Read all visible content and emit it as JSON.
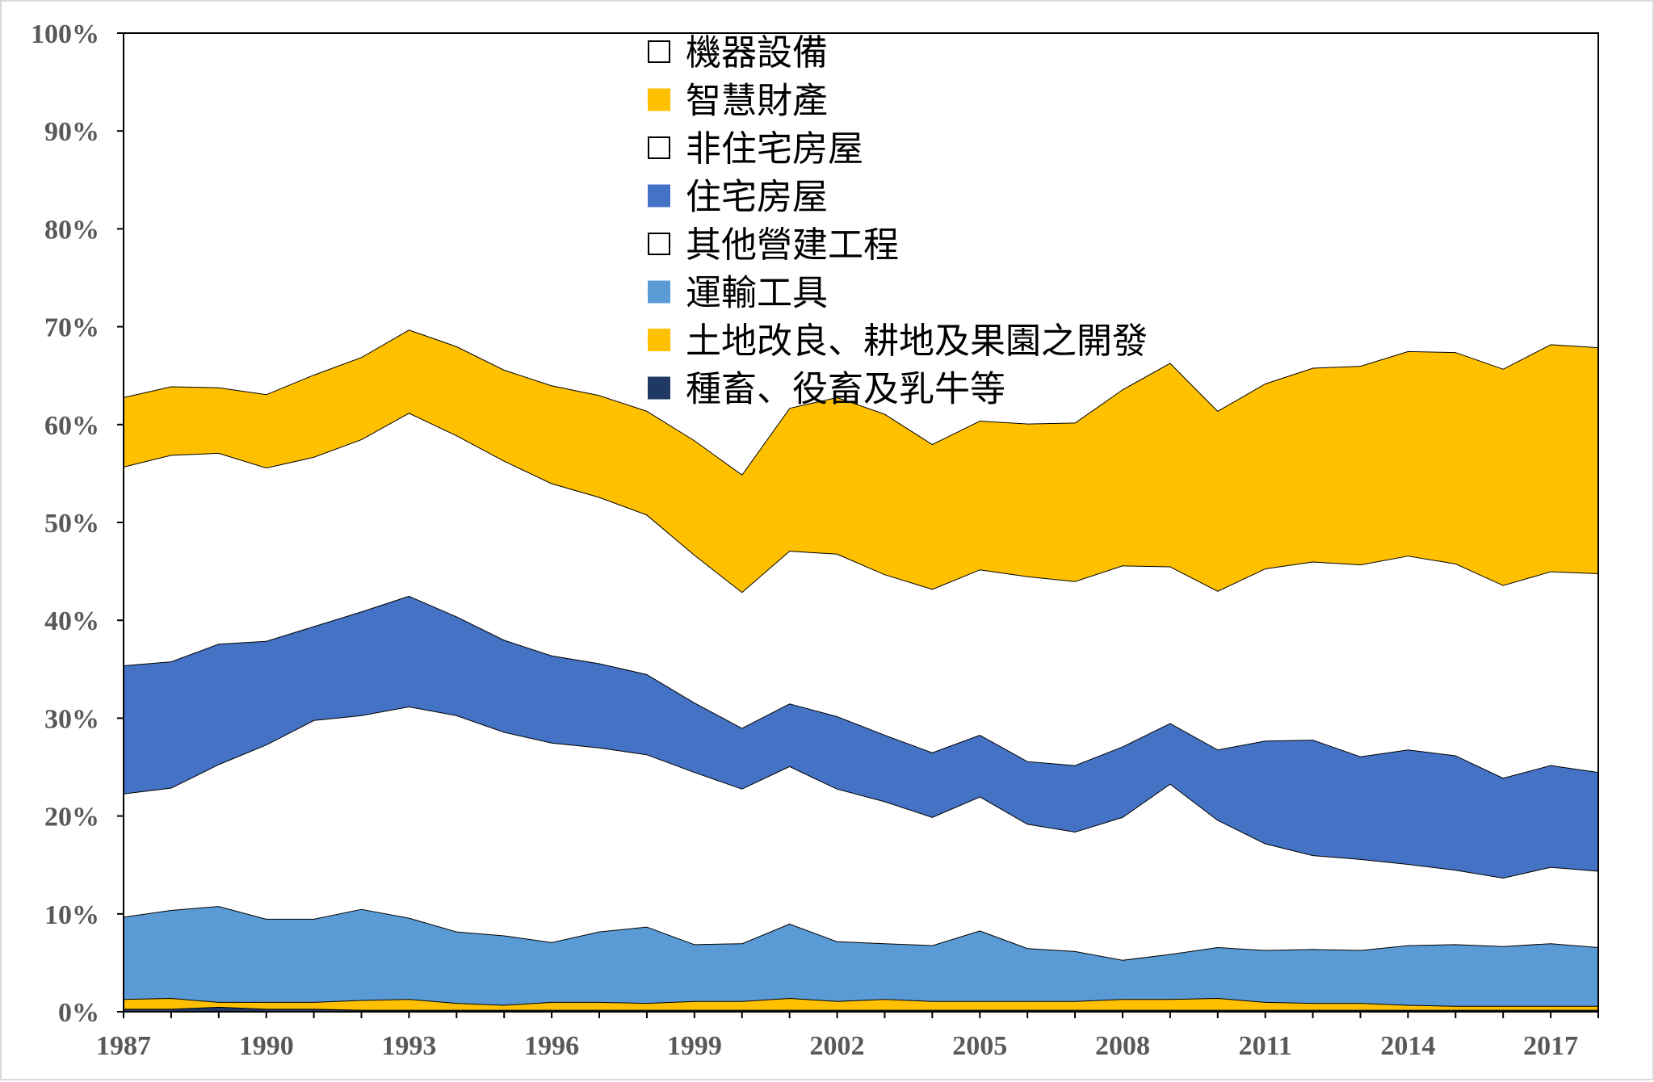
{
  "chart_data": {
    "type": "area",
    "stacked": true,
    "percent": true,
    "x": [
      1987,
      1988,
      1989,
      1990,
      1991,
      1992,
      1993,
      1994,
      1995,
      1996,
      1997,
      1998,
      1999,
      2000,
      2001,
      2002,
      2003,
      2004,
      2005,
      2006,
      2007,
      2008,
      2009,
      2010,
      2011,
      2012,
      2013,
      2014,
      2015,
      2016,
      2017,
      2018
    ],
    "x_tick_labels": [
      "1987",
      "1990",
      "1993",
      "1996",
      "1999",
      "2002",
      "2005",
      "2008",
      "2011",
      "2014",
      "2017"
    ],
    "x_tick_values": [
      1987,
      1990,
      1993,
      1996,
      1999,
      2002,
      2005,
      2008,
      2011,
      2014,
      2017
    ],
    "y_tick_labels": [
      "0%",
      "10%",
      "20%",
      "30%",
      "40%",
      "50%",
      "60%",
      "70%",
      "80%",
      "90%",
      "100%"
    ],
    "ylim": [
      0,
      100
    ],
    "legend_position": "top-center",
    "series": [
      {
        "name": "種畜、役畜及乳牛等",
        "color": "#203864",
        "values": [
          0.3,
          0.3,
          0.5,
          0.3,
          0.3,
          0.2,
          0.2,
          0.2,
          0.2,
          0.2,
          0.2,
          0.2,
          0.2,
          0.2,
          0.2,
          0.2,
          0.2,
          0.2,
          0.2,
          0.2,
          0.2,
          0.2,
          0.2,
          0.2,
          0.2,
          0.2,
          0.2,
          0.2,
          0.2,
          0.2,
          0.2,
          0.2
        ]
      },
      {
        "name": "土地改良、耕地及果園之開發",
        "color": "#ffc000",
        "values": [
          1.0,
          1.1,
          0.5,
          0.7,
          0.7,
          1.0,
          1.1,
          0.7,
          0.5,
          0.8,
          0.8,
          0.7,
          0.9,
          0.9,
          1.2,
          0.9,
          1.1,
          0.9,
          0.9,
          0.9,
          0.9,
          1.1,
          1.1,
          1.2,
          0.8,
          0.7,
          0.7,
          0.5,
          0.4,
          0.4,
          0.4,
          0.4
        ]
      },
      {
        "name": "運輸工具",
        "color": "#5b9bd5",
        "values": [
          8.4,
          9.0,
          9.8,
          8.5,
          8.5,
          9.3,
          8.3,
          7.3,
          7.1,
          6.1,
          7.2,
          7.8,
          5.8,
          5.9,
          7.6,
          6.1,
          5.7,
          5.7,
          7.2,
          5.4,
          5.1,
          4.0,
          4.6,
          5.2,
          5.3,
          5.5,
          5.4,
          6.1,
          6.3,
          6.1,
          6.4,
          6.0
        ]
      },
      {
        "name": "其他營建工程",
        "color": "#ffffff",
        "values": [
          12.6,
          12.5,
          14.5,
          17.8,
          20.3,
          19.8,
          21.6,
          22.1,
          20.8,
          20.4,
          18.8,
          17.6,
          17.6,
          15.8,
          16.1,
          15.6,
          14.5,
          13.1,
          13.7,
          12.7,
          12.2,
          14.6,
          17.4,
          13.0,
          10.9,
          9.6,
          9.3,
          8.3,
          7.6,
          7.0,
          7.8,
          7.8
        ]
      },
      {
        "name": "住宅房屋",
        "color": "#4472c4",
        "values": [
          13.1,
          12.9,
          12.3,
          10.6,
          9.6,
          10.6,
          11.3,
          10.1,
          9.4,
          8.9,
          8.6,
          8.2,
          7.1,
          6.2,
          6.4,
          7.4,
          6.8,
          6.6,
          6.3,
          6.4,
          6.8,
          7.2,
          6.2,
          7.2,
          10.5,
          11.8,
          10.5,
          11.7,
          11.7,
          10.2,
          10.4,
          10.1
        ]
      },
      {
        "name": "非住宅房屋",
        "color": "#ffffff",
        "values": [
          20.3,
          21.1,
          19.5,
          17.7,
          17.3,
          17.6,
          18.7,
          18.5,
          18.3,
          17.6,
          17.0,
          16.3,
          15.1,
          13.9,
          15.6,
          16.6,
          16.4,
          16.7,
          16.9,
          18.9,
          18.8,
          18.5,
          16.0,
          16.2,
          17.6,
          18.2,
          19.6,
          19.8,
          19.6,
          19.7,
          19.8,
          20.3
        ]
      },
      {
        "name": "智慧財產",
        "color": "#ffc000",
        "values": [
          7.1,
          7.0,
          6.7,
          7.5,
          8.4,
          8.4,
          8.5,
          9.1,
          9.3,
          10.0,
          10.4,
          10.6,
          11.7,
          12.0,
          14.6,
          16.0,
          16.4,
          14.8,
          15.2,
          15.6,
          16.2,
          18.0,
          20.8,
          18.4,
          18.9,
          19.8,
          20.3,
          20.9,
          21.6,
          22.1,
          23.2,
          23.1
        ]
      },
      {
        "name": "機器設備",
        "color": "#ffffff",
        "values": [
          37.2,
          36.1,
          36.2,
          36.9,
          34.9,
          33.1,
          30.3,
          32.0,
          34.4,
          36.0,
          37.0,
          38.6,
          41.6,
          45.1,
          38.3,
          37.2,
          38.9,
          42.0,
          39.6,
          39.9,
          39.8,
          36.4,
          33.7,
          38.6,
          35.8,
          34.2,
          34.0,
          32.5,
          32.6,
          34.3,
          31.8,
          32.1
        ]
      }
    ]
  }
}
